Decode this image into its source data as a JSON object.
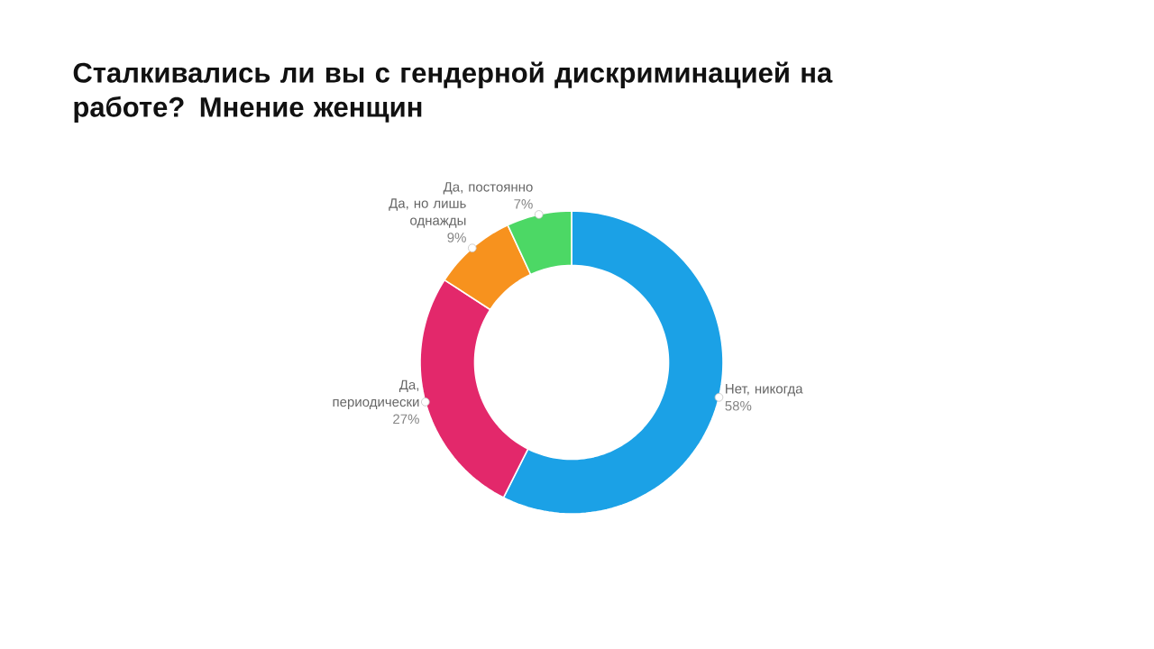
{
  "chart_data": {
    "type": "donut",
    "title": "Сталкивались ли вы с гендерной дискриминацией на работе? Мнение женщин",
    "categories": [
      "Нет, никогда",
      "Да, периодически",
      "Да, но лишь однажды",
      "Да, постоянно"
    ],
    "values": [
      58,
      27,
      9,
      7
    ],
    "colors": [
      "#1ba1e6",
      "#e3286b",
      "#f7921e",
      "#4cd865"
    ],
    "value_labels": [
      "58%",
      "27%",
      "9%",
      "7%"
    ]
  }
}
